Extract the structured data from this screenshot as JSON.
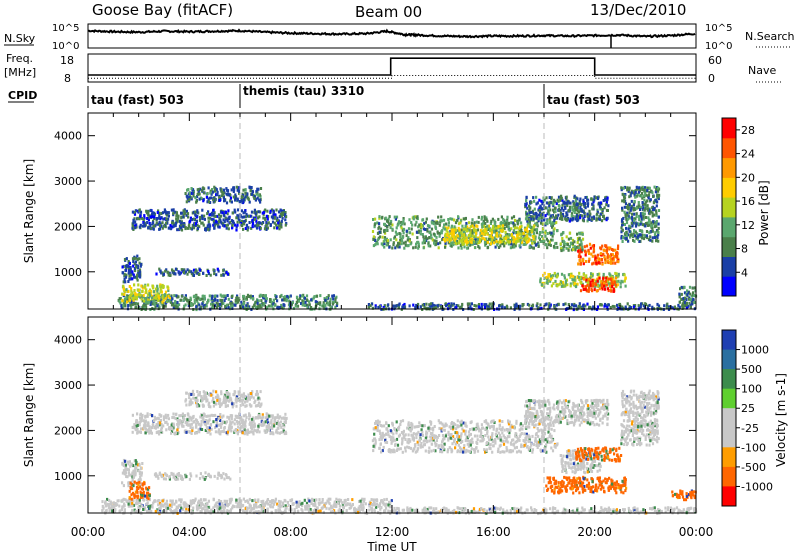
{
  "header": {
    "station": "Goose Bay (fitACF)",
    "beam": "Beam 00",
    "date": "13/Dec/2010"
  },
  "noise_panel": {
    "left_label": "N.Sky",
    "right_label": "N.Search",
    "tick_top": "10^5",
    "tick_bottom": "10^0"
  },
  "freq_panel": {
    "label_line1": "Freq.",
    "label_line2": "[MHz]",
    "left_ticks": [
      "18",
      "8"
    ],
    "right_label": "Nave",
    "right_ticks": [
      "60",
      "0"
    ]
  },
  "cpid_panel": {
    "label": "CPID",
    "segments": [
      {
        "label": "tau (fast) 503",
        "start_hour": 0
      },
      {
        "label": "themis (tau) 3310",
        "start_hour": 6
      },
      {
        "label": "tau (fast) 503",
        "start_hour": 18
      }
    ]
  },
  "colors": {
    "power_scale": [
      "#0000ff",
      "#1a3fa6",
      "#4a7f4a",
      "#5aa76e",
      "#b6d320",
      "#ffcc00",
      "#ff9900",
      "#ff5500",
      "#ff0000"
    ],
    "velocity_scale": [
      "#1f3fb2",
      "#2a6fa0",
      "#3c8c4c",
      "#5fcf2f",
      "#c8c8c8",
      "#c8c8c8",
      "#ff9d00",
      "#ff6600",
      "#ff0000"
    ]
  },
  "chart_data": [
    {
      "type": "line",
      "name": "noise",
      "xlim": [
        0,
        24
      ],
      "ylim": [
        0,
        5
      ],
      "series": [
        {
          "name": "N.Sky",
          "x": [
            0,
            1,
            2,
            3,
            4,
            5,
            6,
            7,
            8,
            9,
            10,
            11,
            11.8,
            12.5,
            13,
            14,
            15,
            16,
            17,
            18,
            19,
            20,
            21,
            22,
            23,
            24
          ],
          "values": [
            3.6,
            3.4,
            3.3,
            3.5,
            3.4,
            3.5,
            3.6,
            3.3,
            3.1,
            3.0,
            2.9,
            3.0,
            3.5,
            2.8,
            2.7,
            2.5,
            2.4,
            2.5,
            2.5,
            2.6,
            2.5,
            2.6,
            2.7,
            2.4,
            2.6,
            3.0
          ]
        }
      ]
    },
    {
      "type": "line",
      "name": "frequency",
      "xlim": [
        0,
        24
      ],
      "series": [
        {
          "name": "Freq.",
          "x": [
            0,
            11.95,
            11.95,
            20.0,
            20.0,
            24
          ],
          "values": [
            10.5,
            10.5,
            16.5,
            16.5,
            10.5,
            10.5
          ],
          "ylim": [
            8,
            18
          ]
        },
        {
          "name": "Nave",
          "x": [
            0,
            12,
            12,
            20,
            20,
            24
          ],
          "values": [
            8,
            8,
            14,
            14,
            8,
            8
          ],
          "ylim": [
            0,
            60
          ]
        }
      ]
    },
    {
      "type": "heatmap",
      "title": "",
      "xlabel": "",
      "ylabel": "Slant Range [km]",
      "xlim": [
        0,
        24
      ],
      "ylim": [
        180,
        4500
      ],
      "yticks": [
        1000,
        2000,
        3000,
        4000
      ],
      "colorbar": {
        "label": "Power [dB]",
        "ticks": [
          4,
          8,
          12,
          16,
          20,
          24,
          28
        ],
        "range": [
          0,
          30
        ]
      },
      "regions": [
        {
          "x": [
            1.1,
            9.8
          ],
          "y": [
            200,
            520
          ],
          "value": 9
        },
        {
          "x": [
            1.3,
            3.2
          ],
          "y": [
            350,
            750
          ],
          "value": 15
        },
        {
          "x": [
            1.3,
            2.1
          ],
          "y": [
            800,
            1380
          ],
          "value": 6
        },
        {
          "x": [
            1.7,
            7.8
          ],
          "y": [
            1950,
            2400
          ],
          "value": 6
        },
        {
          "x": [
            3.8,
            6.8
          ],
          "y": [
            2550,
            2900
          ],
          "value": 7
        },
        {
          "x": [
            2.6,
            5.6
          ],
          "y": [
            950,
            1100
          ],
          "value": 6
        },
        {
          "x": [
            11.2,
            18.5
          ],
          "y": [
            1550,
            2250
          ],
          "value": 10
        },
        {
          "x": [
            14.0,
            17.6
          ],
          "y": [
            1650,
            2050
          ],
          "value": 16
        },
        {
          "x": [
            17.2,
            20.5
          ],
          "y": [
            2150,
            2700
          ],
          "value": 7
        },
        {
          "x": [
            17.8,
            21.2
          ],
          "y": [
            700,
            1000
          ],
          "value": 14
        },
        {
          "x": [
            19.4,
            20.8
          ],
          "y": [
            600,
            900
          ],
          "value": 26
        },
        {
          "x": [
            19.3,
            20.9
          ],
          "y": [
            1200,
            1650
          ],
          "value": 24
        },
        {
          "x": [
            18.6,
            19.5
          ],
          "y": [
            1500,
            1900
          ],
          "value": 11
        },
        {
          "x": [
            11.0,
            24.0
          ],
          "y": [
            200,
            330
          ],
          "value": 6
        },
        {
          "x": [
            21.0,
            22.5
          ],
          "y": [
            1700,
            2900
          ],
          "value": 8
        },
        {
          "x": [
            23.3,
            24.0
          ],
          "y": [
            300,
            700
          ],
          "value": 8
        }
      ]
    },
    {
      "type": "heatmap",
      "title": "",
      "xlabel": "Time UT",
      "ylabel": "Slant Range [km]",
      "xlim": [
        0,
        24
      ],
      "ylim": [
        180,
        4500
      ],
      "yticks": [
        1000,
        2000,
        3000,
        4000
      ],
      "xticks": [
        "00:00",
        "04:00",
        "08:00",
        "12:00",
        "16:00",
        "20:00",
        "00:00"
      ],
      "colorbar": {
        "label": "Velocity [m s-1]",
        "ticks": [
          "1000",
          "500",
          "100",
          "25",
          "-25",
          "-100",
          "-500",
          "-1000"
        ]
      },
      "regions": [
        {
          "x": [
            0.5,
            12.0
          ],
          "y": [
            200,
            520
          ],
          "value": 0
        },
        {
          "x": [
            1.3,
            2.1
          ],
          "y": [
            800,
            1380
          ],
          "value": 0
        },
        {
          "x": [
            1.7,
            7.8
          ],
          "y": [
            1950,
            2400
          ],
          "value": 0
        },
        {
          "x": [
            3.8,
            6.8
          ],
          "y": [
            2550,
            2900
          ],
          "value": 0
        },
        {
          "x": [
            2.6,
            5.6
          ],
          "y": [
            950,
            1100
          ],
          "value": 0
        },
        {
          "x": [
            11.2,
            18.5
          ],
          "y": [
            1550,
            2250
          ],
          "value": 0
        },
        {
          "x": [
            17.2,
            20.5
          ],
          "y": [
            2150,
            2700
          ],
          "value": 0
        },
        {
          "x": [
            18.0,
            21.2
          ],
          "y": [
            650,
            1000
          ],
          "value": -300
        },
        {
          "x": [
            18.6,
            20.2
          ],
          "y": [
            1100,
            1600
          ],
          "value": 0
        },
        {
          "x": [
            19.2,
            21.0
          ],
          "y": [
            1350,
            1650
          ],
          "value": -300
        },
        {
          "x": [
            1.6,
            2.4
          ],
          "y": [
            500,
            900
          ],
          "value": -300
        },
        {
          "x": [
            23.0,
            24.0
          ],
          "y": [
            500,
            700
          ],
          "value": -300
        },
        {
          "x": [
            21.0,
            22.5
          ],
          "y": [
            1700,
            2900
          ],
          "value": 0
        },
        {
          "x": [
            12.0,
            24.0
          ],
          "y": [
            200,
            330
          ],
          "value": 0
        }
      ]
    }
  ],
  "xaxis": {
    "ticks": [
      "00:00",
      "04:00",
      "08:00",
      "12:00",
      "16:00",
      "20:00",
      "00:00"
    ],
    "label": "Time UT"
  }
}
